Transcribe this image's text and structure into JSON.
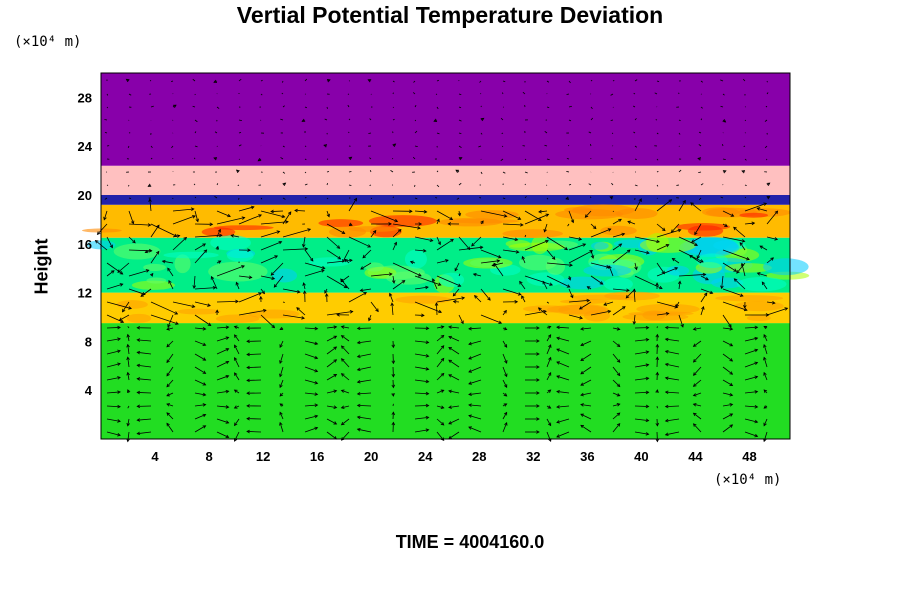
{
  "chart_data": {
    "type": "heatmap",
    "title": "Vertial Potential Temperature Deviation",
    "ylabel": "Height",
    "xlabel": "",
    "x_unit": "(×10⁴ m)",
    "y_unit": "(×10⁴ m)",
    "xlim": [
      0,
      51
    ],
    "ylim": [
      0,
      30
    ],
    "x_ticks": [
      4,
      8,
      12,
      16,
      20,
      24,
      28,
      32,
      36,
      40,
      44,
      48
    ],
    "y_ticks": [
      4,
      8,
      12,
      16,
      20,
      24,
      28
    ],
    "grid": false,
    "overlay": "wind vector arrows",
    "layers": [
      {
        "y_range": [
          0,
          9.5
        ],
        "color": "#22dd22"
      },
      {
        "y_range": [
          9.5,
          12
        ],
        "color": "#ffcc00"
      },
      {
        "y_range": [
          12,
          16.5
        ],
        "color": "#00ee88"
      },
      {
        "y_range": [
          16.5,
          19.2
        ],
        "color": "#ffbb00"
      },
      {
        "y_range": [
          19.2,
          20
        ],
        "color": "#2222aa"
      },
      {
        "y_range": [
          20,
          22.4
        ],
        "color": "#ffc0c0"
      },
      {
        "y_range": [
          22.4,
          30
        ],
        "color": "#8800aa"
      }
    ]
  },
  "footer": {
    "time_label": "TIME = 4004160.0"
  }
}
